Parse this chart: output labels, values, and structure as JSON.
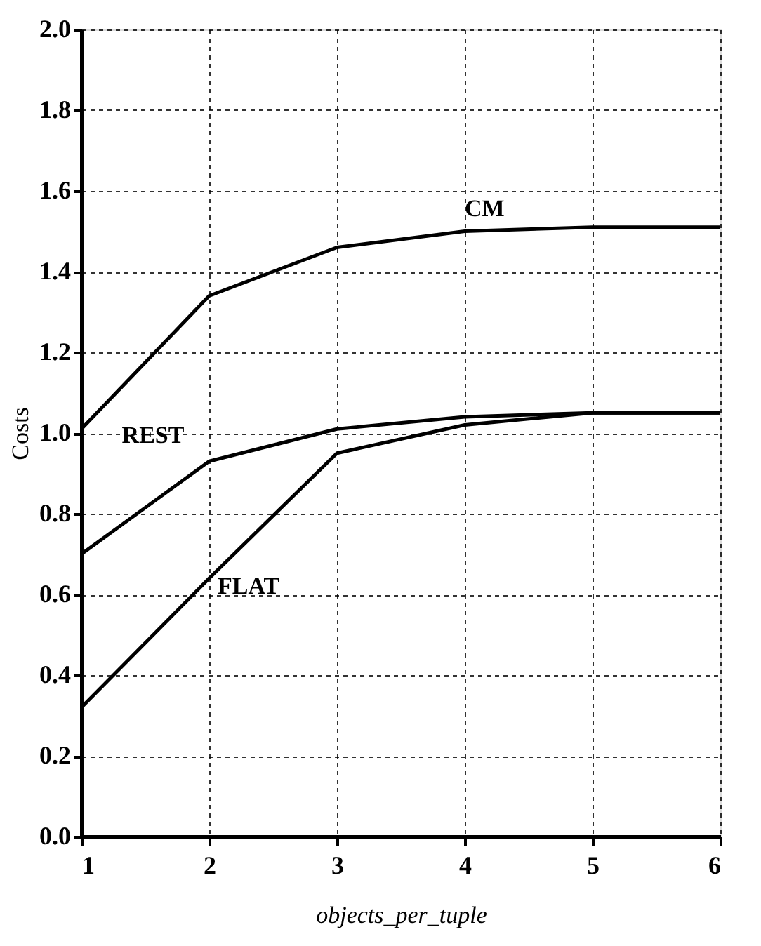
{
  "chart_data": {
    "type": "line",
    "xlabel": "objects_per_tuple",
    "ylabel": "Costs",
    "x": [
      1,
      2,
      3,
      4,
      5,
      6
    ],
    "series": [
      {
        "name": "CM",
        "color": "#000000",
        "values": [
          1.01,
          1.34,
          1.46,
          1.5,
          1.51,
          1.51
        ]
      },
      {
        "name": "REST",
        "color": "#000000",
        "values": [
          0.7,
          0.93,
          1.01,
          1.04,
          1.05,
          1.05
        ]
      },
      {
        "name": "FLAT",
        "color": "#000000",
        "values": [
          0.32,
          0.64,
          0.95,
          1.02,
          1.05,
          1.05
        ]
      }
    ],
    "xlim": [
      1,
      6
    ],
    "xticks": [
      1,
      2,
      3,
      4,
      5,
      6
    ],
    "ylim": [
      0,
      2.0
    ],
    "yticks": [
      {
        "value": 0,
        "label": "0.0"
      },
      0.2,
      0.4,
      0.6,
      0.8,
      {
        "value": 1.0,
        "label": "1.0"
      },
      1.2,
      1.4,
      1.6,
      1.8,
      {
        "value": 2.0,
        "label": "2.0"
      }
    ],
    "grid": true,
    "legend": false,
    "marker": "none",
    "line_style": "solid"
  }
}
